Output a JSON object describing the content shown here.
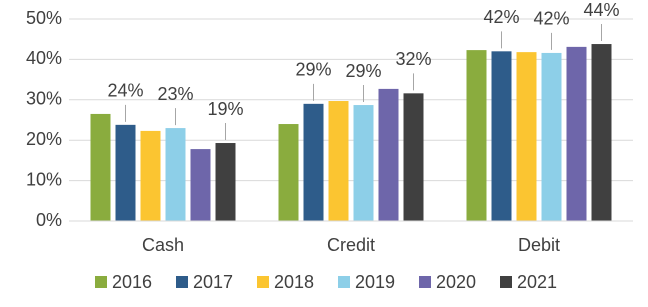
{
  "chart_data": {
    "type": "bar",
    "categories": [
      "Cash",
      "Credit",
      "Debit"
    ],
    "series": [
      {
        "name": "2016",
        "color": "#8aac3e",
        "values": [
          26.5,
          24,
          42.3
        ]
      },
      {
        "name": "2017",
        "color": "#2e5c8a",
        "values": [
          23.8,
          29,
          42
        ],
        "value_labels": [
          "24%",
          "29%",
          "42%"
        ]
      },
      {
        "name": "2018",
        "color": "#fbc531",
        "values": [
          22.3,
          29.7,
          41.8
        ]
      },
      {
        "name": "2019",
        "color": "#8dcfe8",
        "values": [
          23,
          28.7,
          41.6
        ],
        "value_labels": [
          "23%",
          "29%",
          "42%"
        ]
      },
      {
        "name": "2020",
        "color": "#6e66aa",
        "values": [
          17.8,
          32.7,
          43.1
        ]
      },
      {
        "name": "2021",
        "color": "#404040",
        "values": [
          19.3,
          31.6,
          43.8
        ],
        "value_labels": [
          "19%",
          "32%",
          "44%"
        ]
      }
    ],
    "ylim": [
      0,
      50
    ],
    "yticks": [
      {
        "value": 0,
        "label": "0%"
      },
      {
        "value": 10,
        "label": "10%"
      },
      {
        "value": 20,
        "label": "20%"
      },
      {
        "value": 30,
        "label": "30%"
      },
      {
        "value": 40,
        "label": "40%"
      },
      {
        "value": 50,
        "label": "50%"
      }
    ],
    "grid": true
  }
}
